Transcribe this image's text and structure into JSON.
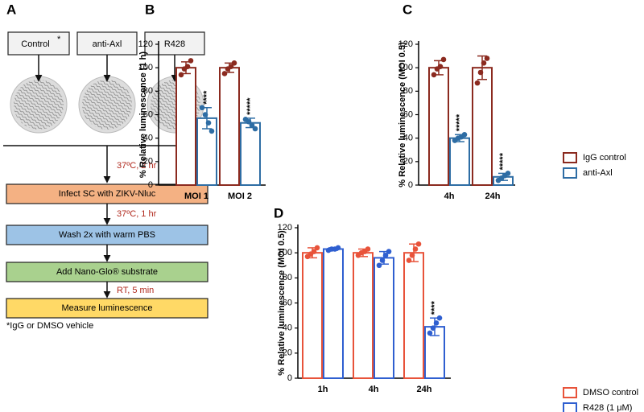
{
  "diagram": {
    "panel": "A",
    "columns": [
      {
        "label": "Control",
        "mark": "*"
      },
      {
        "label": "anti-Axl"
      },
      {
        "label": "R428"
      }
    ],
    "steps": [
      {
        "label": "Infect SC with ZIKV-Nluc",
        "condition": "37ºC, 2 hr"
      },
      {
        "label": "Wash 2x with warm PBS",
        "condition": "37ºC, 1 hr"
      },
      {
        "label": "Add Nano-Glo® substrate"
      },
      {
        "label": "Measure luminescence",
        "condition": "RT, 5 min"
      }
    ],
    "footnote": "*IgG or DMSO vehicle"
  },
  "chart_data": [
    {
      "type": "bar",
      "panel": "B",
      "ylabel": "% Relative luminescence (1 h)",
      "categories": [
        "MOI 1",
        "MOI 2"
      ],
      "ylim": [
        0,
        120
      ],
      "yticks": [
        0,
        20,
        40,
        60,
        80,
        100,
        120
      ],
      "series": [
        {
          "color": "#8b2a1f",
          "values": [
            100,
            100
          ],
          "errors": [
            5,
            4
          ],
          "points": [
            [
              94,
              99,
              101,
              106
            ],
            [
              95,
              99,
              101,
              104
            ]
          ]
        },
        {
          "color": "#2e6da4",
          "values": [
            57,
            53
          ],
          "errors": [
            9,
            4
          ],
          "points": [
            [
              66,
              60,
              53,
              46
            ],
            [
              56,
              54,
              51,
              48
            ]
          ],
          "significance": [
            "****",
            "*****"
          ]
        }
      ]
    },
    {
      "type": "bar",
      "panel": "C",
      "ylabel": "% Relative luminescence (MOI 0.5)",
      "categories": [
        "4h",
        "24h"
      ],
      "ylim": [
        0,
        120
      ],
      "yticks": [
        0,
        20,
        40,
        60,
        80,
        100,
        120
      ],
      "series": [
        {
          "name": "IgG control",
          "color": "#8b2a1f",
          "values": [
            100,
            100
          ],
          "errors": [
            6,
            10
          ],
          "points": [
            [
              94,
              99,
              101,
              107
            ],
            [
              87,
              96,
              104,
              108
            ]
          ]
        },
        {
          "name": "anti-Axl",
          "color": "#2e6da4",
          "values": [
            40,
            7
          ],
          "errors": [
            3,
            3
          ],
          "points": [
            [
              38,
              40,
              41,
              43
            ],
            [
              4,
              6,
              8,
              10
            ]
          ],
          "significance": [
            "*****",
            "*****"
          ]
        }
      ]
    },
    {
      "type": "bar",
      "panel": "D",
      "ylabel": "% Relative luminescence (MOI 0.5)",
      "categories": [
        "1h",
        "4h",
        "24h"
      ],
      "ylim": [
        0,
        120
      ],
      "yticks": [
        0,
        20,
        40,
        60,
        80,
        100,
        120
      ],
      "series": [
        {
          "name": "DMSO control",
          "color": "#e8533a",
          "values": [
            100,
            100,
            100
          ],
          "errors": [
            4,
            3,
            7
          ],
          "points": [
            [
              97,
              99,
              101,
              104
            ],
            [
              98,
              100,
              101,
              103
            ],
            [
              94,
              98,
              103,
              107
            ]
          ]
        },
        {
          "name": "R428 (1 μM)",
          "color": "#2f5fd0",
          "values": [
            103,
            96,
            41
          ],
          "errors": [
            1,
            5,
            7
          ],
          "points": [
            [
              102,
              103,
              103,
              104
            ],
            [
              90,
              94,
              98,
              101
            ],
            [
              36,
              40,
              44,
              48
            ]
          ],
          "significance": [
            null,
            null,
            "****"
          ]
        }
      ]
    }
  ]
}
